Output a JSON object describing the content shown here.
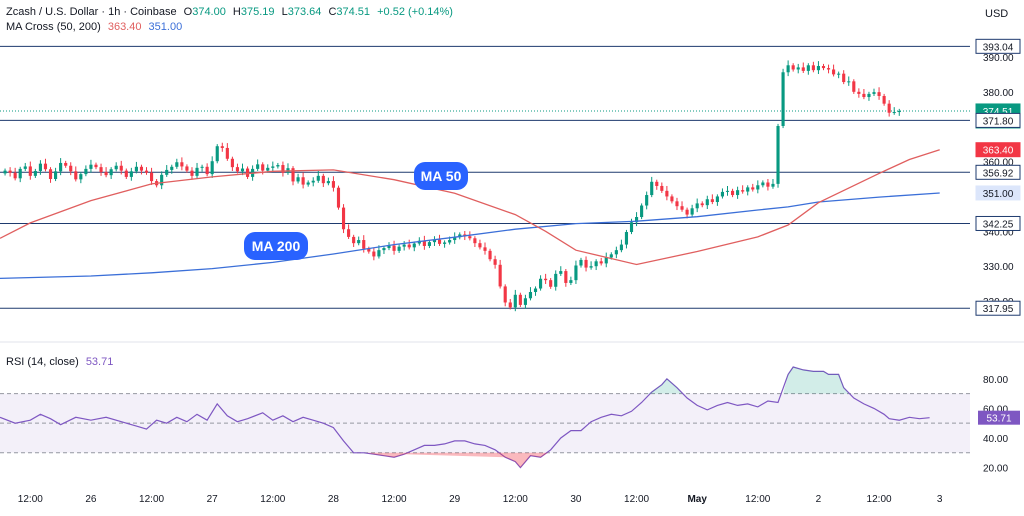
{
  "header": {
    "symbol": "Zcash / U.S. Dollar · 1h · Coinbase",
    "open_label": "O",
    "open": "374.00",
    "high_label": "H",
    "high": "375.19",
    "low_label": "L",
    "low": "373.64",
    "close_label": "C",
    "close": "374.51",
    "change": "+0.52 (+0.14%)",
    "indicator": "MA Cross (50, 200)",
    "ma50_value": "363.40",
    "ma200_value": "351.00",
    "currency": "USD"
  },
  "rsi_header": {
    "label": "RSI (14, close)",
    "value": "53.71"
  },
  "annotations": {
    "ma50_label": "MA 50",
    "ma200_label": "MA 200"
  },
  "colors": {
    "up": "#089981",
    "down": "#f23645",
    "ma50": "#e05f5f",
    "ma200": "#3b6fd8",
    "level": "#1e3a6e",
    "rsi": "#7e57c2",
    "badge": "#2962ff"
  },
  "chart_data": [
    {
      "type": "candlestick",
      "symbol": "Zcash / U.S. Dollar",
      "interval": "1h",
      "exchange": "Coinbase",
      "currency": "USD",
      "y_range": [
        314,
        396
      ],
      "y_ticks": [
        {
          "value": 390,
          "label": "390.00"
        },
        {
          "value": 380,
          "label": "380.00"
        },
        {
          "value": 360,
          "label": "360.00"
        },
        {
          "value": 340,
          "label": "340.00"
        },
        {
          "value": 330,
          "label": "330.00"
        },
        {
          "value": 320,
          "label": "320.00"
        }
      ],
      "x_ticks": [
        {
          "t": 6,
          "label": "12:00"
        },
        {
          "t": 18,
          "label": "26"
        },
        {
          "t": 30,
          "label": "12:00"
        },
        {
          "t": 42,
          "label": "27"
        },
        {
          "t": 54,
          "label": "12:00"
        },
        {
          "t": 66,
          "label": "28"
        },
        {
          "t": 78,
          "label": "12:00"
        },
        {
          "t": 90,
          "label": "29"
        },
        {
          "t": 102,
          "label": "12:00"
        },
        {
          "t": 114,
          "label": "30"
        },
        {
          "t": 126,
          "label": "12:00"
        },
        {
          "t": 138,
          "label": "May"
        },
        {
          "t": 150,
          "label": "12:00"
        },
        {
          "t": 162,
          "label": "2"
        },
        {
          "t": 174,
          "label": "12:00"
        },
        {
          "t": 186,
          "label": "3"
        }
      ],
      "price_closes": [
        357.4,
        356.8,
        355.2,
        357.9,
        358.6,
        355.9,
        357.3,
        359.4,
        357.8,
        355.0,
        357.2,
        359.6,
        358.8,
        357.2,
        354.9,
        356.4,
        357.9,
        359.1,
        358.4,
        357.0,
        356.1,
        357.8,
        358.8,
        357.4,
        355.6,
        357.2,
        358.5,
        357.4,
        356.8,
        354.4,
        353.2,
        356.2,
        357.6,
        358.5,
        359.8,
        358.6,
        357.4,
        355.9,
        358.2,
        358.5,
        356.4,
        360.1,
        364.4,
        363.9,
        360.8,
        358.4,
        357.2,
        358.0,
        355.6,
        357.9,
        359.2,
        357.4,
        358.2,
        358.6,
        359.0,
        356.8,
        358.1,
        354.3,
        355.5,
        353.4,
        354.0,
        354.5,
        355.9,
        353.8,
        354.4,
        352.5,
        346.8,
        340.6,
        338.4,
        336.6,
        337.5,
        335.0,
        334.2,
        332.8,
        334.6,
        335.2,
        335.9,
        334.4,
        335.6,
        336.2,
        335.4,
        336.5,
        337.3,
        335.8,
        336.9,
        337.6,
        336.4,
        336.8,
        337.5,
        338.3,
        339.1,
        338.6,
        338.0,
        336.6,
        335.4,
        334.4,
        332.0,
        330.4,
        324.2,
        319.6,
        318.2,
        321.8,
        318.9,
        320.8,
        322.6,
        323.6,
        326.4,
        326.0,
        324.1,
        327.8,
        328.6,
        325.2,
        326.0,
        330.2,
        331.8,
        329.6,
        330.0,
        331.4,
        330.8,
        332.5,
        333.4,
        334.6,
        336.2,
        339.8,
        342.6,
        344.1,
        347.4,
        350.4,
        354.2,
        353.0,
        351.6,
        350.0,
        348.6,
        347.2,
        346.2,
        344.8,
        346.6,
        348.0,
        347.5,
        349.2,
        348.4,
        350.0,
        351.3,
        351.6,
        350.4,
        351.8,
        351.4,
        352.6,
        352.0,
        353.2,
        354.0,
        352.8,
        353.6,
        370.2,
        385.6,
        387.6,
        386.4,
        387.0,
        386.0,
        387.6,
        386.2,
        387.4,
        386.8,
        386.4,
        385.0,
        385.2,
        382.8,
        383.0,
        380.0,
        379.4,
        378.5,
        379.4,
        379.9,
        378.8,
        376.6,
        374.0,
        374.2,
        374.51
      ],
      "ma50": [
        [
          0,
          338.0
        ],
        [
          6,
          342.4
        ],
        [
          18,
          348.8
        ],
        [
          30,
          353.6
        ],
        [
          42,
          355.6
        ],
        [
          54,
          357.2
        ],
        [
          66,
          357.6
        ],
        [
          78,
          354.8
        ],
        [
          90,
          350.9
        ],
        [
          102,
          344.8
        ],
        [
          108,
          340.0
        ],
        [
          114,
          334.6
        ],
        [
          126,
          330.5
        ],
        [
          138,
          334.2
        ],
        [
          150,
          338.4
        ],
        [
          156,
          341.8
        ],
        [
          162,
          348.2
        ],
        [
          174,
          356.6
        ],
        [
          180,
          360.6
        ],
        [
          186,
          363.4
        ]
      ],
      "ma200": [
        [
          0,
          326.5
        ],
        [
          18,
          327.2
        ],
        [
          30,
          328.1
        ],
        [
          42,
          329.3
        ],
        [
          54,
          331.1
        ],
        [
          66,
          333.5
        ],
        [
          78,
          336.2
        ],
        [
          90,
          338.3
        ],
        [
          102,
          340.6
        ],
        [
          114,
          342.2
        ],
        [
          126,
          342.9
        ],
        [
          138,
          344.2
        ],
        [
          150,
          346.1
        ],
        [
          156,
          347.0
        ],
        [
          162,
          348.4
        ],
        [
          174,
          349.8
        ],
        [
          186,
          351.0
        ]
      ],
      "horizontal_levels": [
        393.04,
        371.8,
        356.92,
        342.25,
        317.95
      ],
      "price_tags": [
        {
          "value": 393.04,
          "label": "393.04",
          "style": "level"
        },
        {
          "value": 374.51,
          "label": "374.51",
          "sublabel": "51:27",
          "style": "last"
        },
        {
          "value": 371.8,
          "label": "371.80",
          "style": "level"
        },
        {
          "value": 363.4,
          "label": "363.40",
          "style": "ma50"
        },
        {
          "value": 356.92,
          "label": "356.92",
          "style": "level"
        },
        {
          "value": 351.0,
          "label": "351.00",
          "style": "ma200"
        },
        {
          "value": 342.25,
          "label": "342.25",
          "style": "level"
        },
        {
          "value": 317.95,
          "label": "317.95",
          "style": "level"
        }
      ]
    },
    {
      "type": "line",
      "name": "RSI (14, close)",
      "y_range": [
        17,
        90
      ],
      "y_ticks": [
        {
          "value": 80,
          "label": "80.00"
        },
        {
          "value": 60,
          "label": "60.00"
        },
        {
          "value": 40,
          "label": "40.00"
        },
        {
          "value": 20,
          "label": "20.00"
        }
      ],
      "bands": {
        "upper": 70,
        "middle": 50,
        "lower": 30
      },
      "last": {
        "value": 53.71,
        "label": "53.71"
      },
      "points": [
        [
          0,
          54
        ],
        [
          3,
          50
        ],
        [
          6,
          52
        ],
        [
          8,
          56
        ],
        [
          10,
          53
        ],
        [
          12,
          49
        ],
        [
          15,
          54
        ],
        [
          18,
          52
        ],
        [
          21,
          54
        ],
        [
          24,
          51
        ],
        [
          27,
          48
        ],
        [
          29,
          46
        ],
        [
          31,
          52
        ],
        [
          33,
          50
        ],
        [
          35,
          54
        ],
        [
          37,
          51
        ],
        [
          39,
          56
        ],
        [
          41,
          52
        ],
        [
          43,
          63
        ],
        [
          45,
          55
        ],
        [
          47,
          51
        ],
        [
          49,
          53
        ],
        [
          52,
          57
        ],
        [
          54,
          52
        ],
        [
          56,
          55
        ],
        [
          58,
          51
        ],
        [
          60,
          54
        ],
        [
          62,
          52
        ],
        [
          64,
          50
        ],
        [
          66,
          47
        ],
        [
          68,
          38
        ],
        [
          70,
          30
        ],
        [
          72,
          30
        ],
        [
          74,
          29
        ],
        [
          76,
          28
        ],
        [
          78,
          27
        ],
        [
          80,
          29
        ],
        [
          82,
          32
        ],
        [
          84,
          35
        ],
        [
          86,
          35
        ],
        [
          88,
          36
        ],
        [
          90,
          38
        ],
        [
          92,
          38
        ],
        [
          94,
          36
        ],
        [
          96,
          35
        ],
        [
          98,
          32
        ],
        [
          100,
          27
        ],
        [
          102,
          24
        ],
        [
          103,
          20
        ],
        [
          105,
          28
        ],
        [
          107,
          27
        ],
        [
          109,
          32
        ],
        [
          111,
          40
        ],
        [
          113,
          45
        ],
        [
          115,
          45
        ],
        [
          117,
          51
        ],
        [
          119,
          54
        ],
        [
          121,
          56
        ],
        [
          123,
          55
        ],
        [
          125,
          58
        ],
        [
          127,
          64
        ],
        [
          129,
          71
        ],
        [
          131,
          76
        ],
        [
          132,
          80
        ],
        [
          134,
          74
        ],
        [
          136,
          67
        ],
        [
          138,
          62
        ],
        [
          140,
          59
        ],
        [
          142,
          62
        ],
        [
          144,
          64
        ],
        [
          146,
          62
        ],
        [
          148,
          63
        ],
        [
          150,
          61
        ],
        [
          152,
          65
        ],
        [
          154,
          64
        ],
        [
          156,
          83
        ],
        [
          157,
          88
        ],
        [
          159,
          86
        ],
        [
          161,
          85
        ],
        [
          163,
          85
        ],
        [
          164,
          83
        ],
        [
          166,
          83
        ],
        [
          167,
          74
        ],
        [
          169,
          67
        ],
        [
          171,
          63
        ],
        [
          173,
          60
        ],
        [
          175,
          56
        ],
        [
          176,
          53
        ],
        [
          178,
          52
        ],
        [
          180,
          54
        ],
        [
          182,
          53
        ],
        [
          184,
          53.71
        ]
      ]
    }
  ]
}
